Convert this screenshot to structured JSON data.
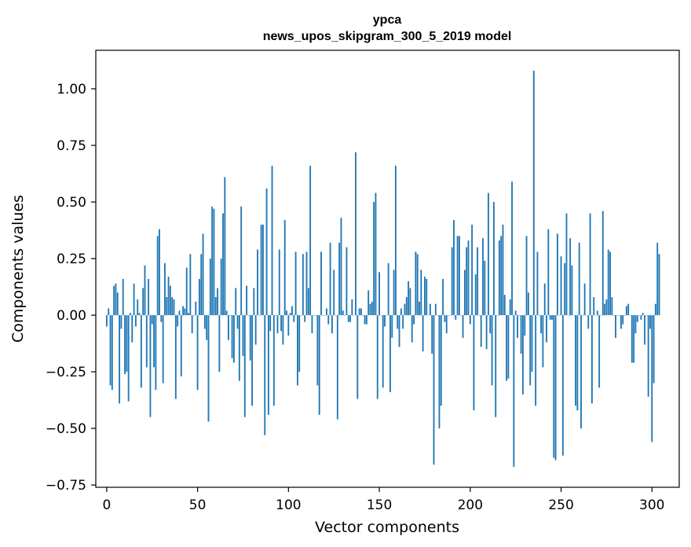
{
  "chart_data": {
    "type": "bar",
    "title": "ypca",
    "subtitle": "news_upos_skipgram_300_5_2019 model",
    "xlabel": "Vector components",
    "ylabel": "Components values",
    "xlim": [
      -6,
      315
    ],
    "ylim": [
      -0.76,
      1.17
    ],
    "xticks": [
      0,
      50,
      100,
      150,
      200,
      250,
      300
    ],
    "xtick_labels": [
      "0",
      "50",
      "100",
      "150",
      "200",
      "250",
      "300"
    ],
    "yticks": [
      -0.75,
      -0.5,
      -0.25,
      0.0,
      0.25,
      0.5,
      0.75,
      1.0
    ],
    "ytick_labels": [
      "−0.75",
      "−0.50",
      "−0.25",
      "0.00",
      "0.25",
      "0.50",
      "0.75",
      "1.00"
    ],
    "grid": false,
    "bar_color": "#1f77b4",
    "values": [
      -0.05,
      0.03,
      -0.31,
      -0.33,
      0.13,
      0.14,
      0.1,
      -0.39,
      -0.06,
      0.16,
      -0.26,
      -0.25,
      -0.38,
      0.01,
      -0.12,
      0.14,
      -0.05,
      0.07,
      0.01,
      -0.32,
      0.12,
      0.22,
      -0.23,
      0.16,
      -0.45,
      -0.04,
      -0.23,
      -0.33,
      0.35,
      0.38,
      -0.03,
      -0.3,
      0.23,
      0.08,
      0.17,
      0.13,
      0.08,
      0.07,
      -0.37,
      -0.05,
      0.02,
      -0.27,
      0.04,
      0.03,
      0.21,
      0.01,
      0.27,
      -0.08,
      0.0,
      0.06,
      -0.33,
      0.16,
      0.27,
      0.36,
      -0.06,
      -0.11,
      -0.47,
      0.25,
      0.48,
      0.47,
      0.08,
      0.12,
      -0.25,
      0.25,
      0.45,
      0.61,
      0.02,
      -0.11,
      0.0,
      -0.19,
      -0.21,
      0.12,
      -0.06,
      -0.29,
      0.48,
      -0.18,
      -0.45,
      0.13,
      0.0,
      -0.2,
      -0.4,
      0.12,
      -0.13,
      0.29,
      0.0,
      0.4,
      0.4,
      -0.53,
      0.56,
      -0.44,
      -0.07,
      0.66,
      -0.4,
      0.0,
      -0.08,
      0.29,
      -0.07,
      -0.13,
      0.42,
      0.02,
      -0.09,
      0.01,
      0.04,
      -0.03,
      0.28,
      -0.31,
      -0.25,
      0.0,
      0.27,
      -0.03,
      0.28,
      0.12,
      0.66,
      -0.08,
      0.0,
      0.0,
      -0.31,
      -0.44,
      0.28,
      0.0,
      0.0,
      0.03,
      -0.04,
      0.32,
      -0.08,
      0.2,
      0.0,
      -0.46,
      0.32,
      0.43,
      0.02,
      0.0,
      0.3,
      -0.03,
      -0.03,
      0.07,
      0.0,
      0.72,
      -0.37,
      0.03,
      0.03,
      0.0,
      -0.04,
      -0.04,
      0.11,
      0.05,
      0.06,
      0.5,
      0.54,
      -0.37,
      0.19,
      0.0,
      -0.32,
      -0.05,
      0.0,
      0.23,
      -0.34,
      -0.1,
      0.2,
      0.66,
      -0.06,
      -0.14,
      0.03,
      -0.06,
      0.05,
      0.08,
      0.15,
      0.12,
      -0.12,
      -0.04,
      0.28,
      0.27,
      0.06,
      0.2,
      -0.16,
      0.17,
      0.16,
      0.0,
      0.05,
      -0.17,
      -0.66,
      0.05,
      0.0,
      -0.5,
      -0.4,
      0.16,
      -0.03,
      -0.08,
      0.0,
      0.0,
      0.3,
      0.42,
      -0.02,
      0.35,
      0.35,
      0.0,
      -0.1,
      0.2,
      0.3,
      0.33,
      -0.04,
      0.4,
      -0.42,
      0.18,
      0.3,
      0.0,
      -0.14,
      0.34,
      0.24,
      -0.15,
      0.54,
      -0.08,
      -0.31,
      0.5,
      -0.45,
      0.0,
      0.33,
      0.35,
      0.4,
      0.09,
      -0.29,
      -0.28,
      0.07,
      0.59,
      -0.67,
      0.02,
      -0.1,
      0.0,
      -0.17,
      -0.35,
      -0.09,
      0.35,
      0.1,
      -0.31,
      -0.25,
      1.08,
      -0.4,
      0.28,
      0.0,
      -0.08,
      -0.23,
      0.14,
      -0.12,
      0.38,
      -0.02,
      -0.02,
      -0.63,
      -0.64,
      0.36,
      0.0,
      0.26,
      -0.62,
      0.23,
      0.45,
      0.0,
      0.34,
      0.22,
      0.0,
      -0.4,
      -0.42,
      0.32,
      -0.5,
      0.0,
      0.14,
      0.0,
      -0.06,
      0.45,
      -0.39,
      0.08,
      0.0,
      0.02,
      -0.32,
      0.0,
      0.46,
      0.05,
      0.07,
      0.29,
      0.28,
      0.08,
      0.0,
      -0.1,
      0.0,
      0.0,
      -0.06,
      -0.04,
      0.0,
      0.04,
      0.05,
      0.0,
      -0.21,
      -0.21,
      -0.08,
      -0.03,
      0.0,
      -0.02,
      0.01,
      -0.13,
      0.0,
      -0.36,
      -0.06,
      -0.56,
      -0.3,
      0.05,
      0.32,
      0.27
    ]
  }
}
